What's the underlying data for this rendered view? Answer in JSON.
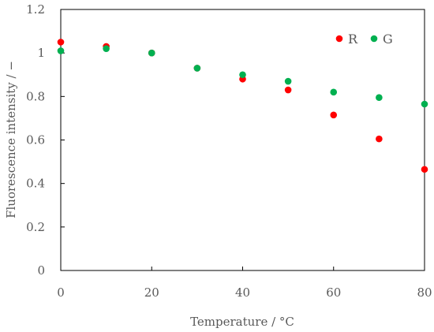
{
  "chart_data": {
    "type": "scatter",
    "xlabel": "Temperature / °C",
    "ylabel": "Fluorescence intensity / −",
    "xlim": [
      0,
      80
    ],
    "ylim": [
      0,
      1.2
    ],
    "x_ticks": [
      "0",
      "20",
      "40",
      "60",
      "80"
    ],
    "y_ticks": [
      "0",
      "0.2",
      "0.4",
      "0.6",
      "0.8",
      "1",
      "1.2"
    ],
    "grid": false,
    "legend_position": "top-right",
    "series": [
      {
        "name": "R",
        "color": "#ff0000",
        "x": [
          0,
          10,
          20,
          30,
          40,
          50,
          60,
          70,
          80
        ],
        "y": [
          1.05,
          1.03,
          1.0,
          0.93,
          0.88,
          0.83,
          0.715,
          0.605,
          0.465
        ]
      },
      {
        "name": "G",
        "color": "#00b050",
        "x": [
          0,
          10,
          20,
          30,
          40,
          50,
          60,
          70,
          80
        ],
        "y": [
          1.01,
          1.02,
          1.0,
          0.93,
          0.9,
          0.87,
          0.82,
          0.795,
          0.765
        ]
      }
    ]
  }
}
